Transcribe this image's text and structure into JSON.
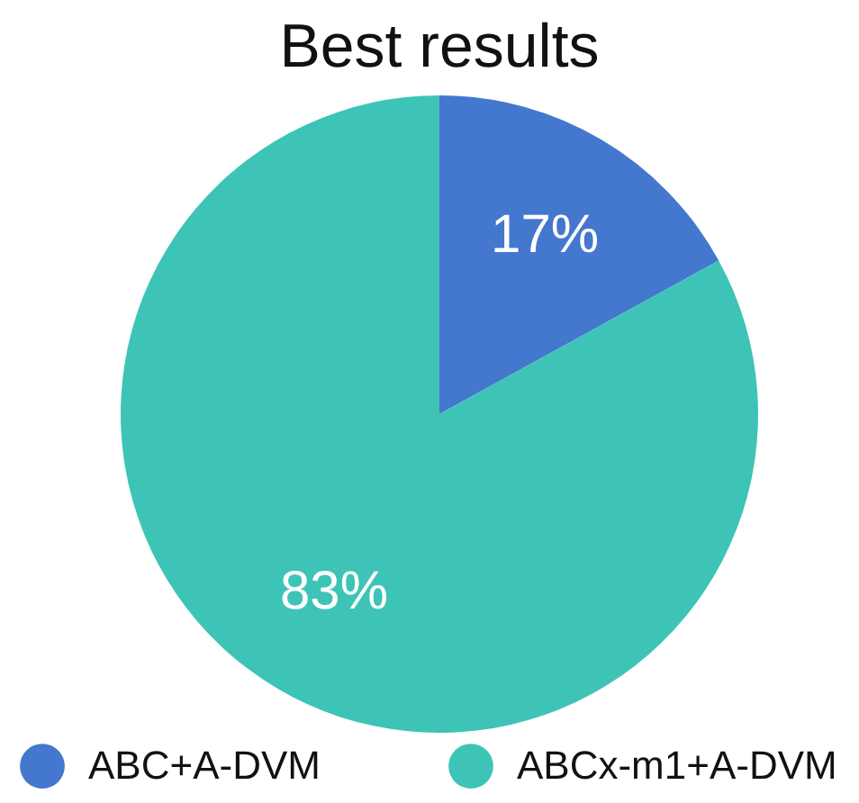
{
  "chart_data": {
    "type": "pie",
    "title": "Best results",
    "categories": [
      "ABC+A-DVM",
      "ABCx-m1+A-DVM"
    ],
    "values": [
      17,
      83
    ],
    "colors": [
      "#4477ce",
      "#3ec4b6"
    ],
    "value_labels": [
      "17%",
      "83%"
    ],
    "legend": "bottom"
  }
}
